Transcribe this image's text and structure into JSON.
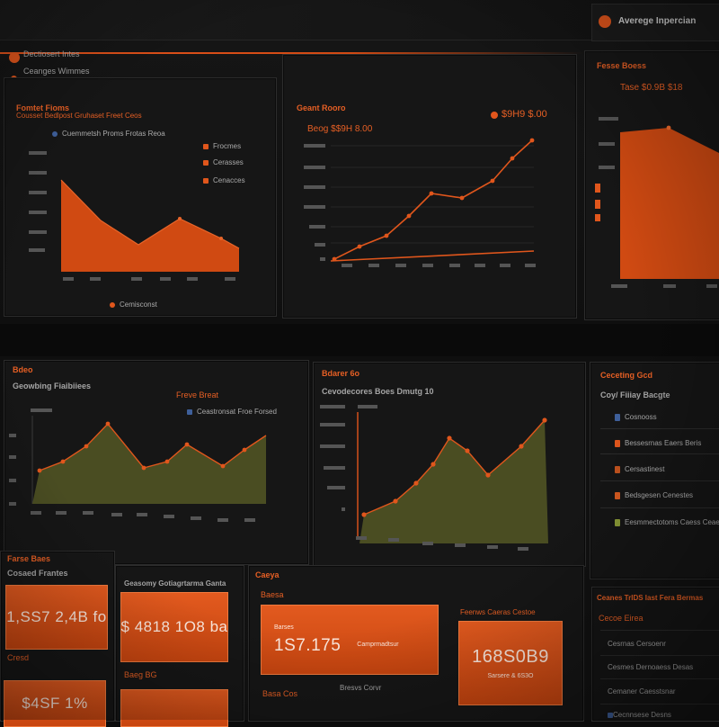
{
  "header": {
    "title": "Averege Inpercian",
    "subtitle_1": "Dectiosert Intes",
    "subtitle_2": "Ceanges Wimmes"
  },
  "panel_a": {
    "title": "Fomtet Fioms",
    "subtitle": "Cousset Bedlpost Gruhaset Freet Ceos",
    "legend_top": "Cuemmetsh Proms Frotas Reoa",
    "legend": [
      "Frocmes",
      "Cerasses",
      "Cenacces"
    ],
    "footer_legend": "Cemisconst"
  },
  "panel_b": {
    "title": "Geant Rooro",
    "subtitle": "Beog $$9H 8.00",
    "value": "$9H9 $.00"
  },
  "panel_c": {
    "title": "Fesse Boess",
    "value": "Tase $0.9B $18"
  },
  "panel_d": {
    "title": "Bdeo",
    "subtitle": "Geowbing Fiaibiiees",
    "label_orange": "Freve Breat",
    "legend": "Ceastronsat Froe Forsed"
  },
  "panel_e": {
    "title": "Bdarer 6o",
    "subtitle": "Cevodecores Boes Dmutg 10"
  },
  "panel_f": {
    "title": "Ceceting Gcd",
    "subtitle": "Coy/ Fiiiay Bacgte",
    "items": [
      {
        "label": "Cosnooss",
        "color": "#3e5f9a"
      },
      {
        "label": "Bessesrnas Eaers Beris",
        "color": "#e0561c"
      },
      {
        "label": "Cersastinest",
        "color": "#c0521e"
      },
      {
        "label": "Bedsgesen Cenestes",
        "color": "#d55a20"
      },
      {
        "label": "Eesmmectotoms Caess Ceaesia",
        "color": "#8a9a36"
      }
    ]
  },
  "kpi_left": {
    "title": "Farse Baes",
    "subtitle": "Cosaed Frantes",
    "tile_value": "1,SS7 2,4B fo",
    "label_2": "Cresd",
    "tile_value_3": "$4SF 1%"
  },
  "kpi_mid": {
    "title": "Geasomy Gotiagrtarma Ganta",
    "tile_value": "$ 4818 1O8 ba",
    "label_2": "Baeg BG"
  },
  "kpi_center": {
    "title": "Caeya",
    "subtitle": "Baesa",
    "tile_caption": "Barses",
    "tile_value": "1S7.175",
    "tile_side": "Camprmadtsur",
    "label_2": "Basa Cos",
    "label_3": "Bresvs Corvr"
  },
  "kpi_right": {
    "title": "Feenws Caeras Cestoe",
    "tile_value": "168S0B9",
    "tile_caption": "Sarsere & 6S3O"
  },
  "list_right": {
    "title": "Ceanes TrIDS Iast Fera Bermas",
    "subtitle": "Cecoe Eirea",
    "items": [
      "Cesrnas Cersoenr",
      "Cesmes Dernoaess Desas",
      "Cemaner Caesstsnar",
      "Cecnnsese Desns"
    ]
  },
  "colors": {
    "accent": "#e2561c",
    "accent_fill": "#d04a12",
    "olive_fill": "#4a4d22",
    "panel_bg": "#161616",
    "background": "#0c0c0c"
  }
}
